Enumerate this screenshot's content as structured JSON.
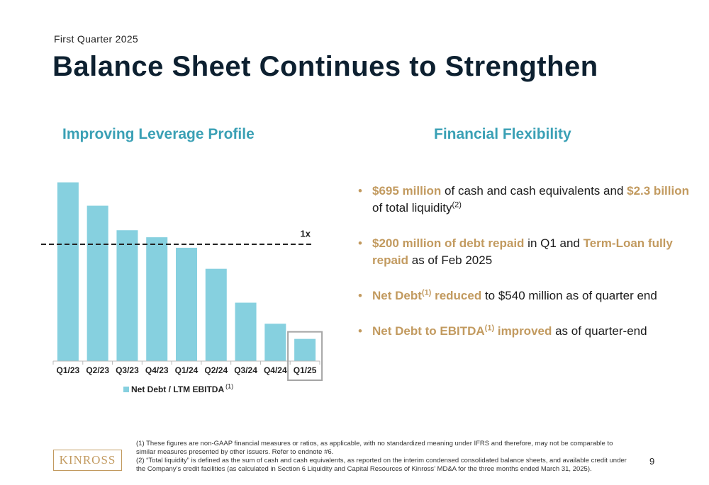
{
  "header": {
    "subtitle": "First Quarter 2025",
    "title": "Balance Sheet Continues to Strengthen"
  },
  "left_heading": "Improving Leverage Profile",
  "right_heading": "Financial Flexibility",
  "chart_data": {
    "type": "bar",
    "categories": [
      "Q1/23",
      "Q2/23",
      "Q3/23",
      "Q4/23",
      "Q1/24",
      "Q2/24",
      "Q3/24",
      "Q4/24",
      "Q1/25"
    ],
    "series": [
      {
        "name": "Net Debt / LTM EBITDA",
        "color": "#86d0df",
        "values": [
          1.53,
          1.33,
          1.12,
          1.06,
          0.97,
          0.79,
          0.5,
          0.32,
          0.19
        ]
      }
    ],
    "legend_note": "(1)",
    "ylim": [
      0,
      1.6
    ],
    "reference_line": {
      "value": 1,
      "label": "1x"
    },
    "highlight_index": 8,
    "grid": false
  },
  "bullets": [
    [
      {
        "text": "$695 million",
        "style": "highlight"
      },
      {
        "text": " of cash and cash equivalents and ",
        "style": "normal"
      },
      {
        "text": "$2.3 billion",
        "style": "highlight"
      },
      {
        "text": " of total liquidity",
        "style": "normal"
      },
      {
        "text": "(2)",
        "style": "sup"
      }
    ],
    [
      {
        "text": "$200 million of debt repaid",
        "style": "highlight"
      },
      {
        "text": " in Q1 and ",
        "style": "normal"
      },
      {
        "text": "Term-Loan fully repaid",
        "style": "highlight"
      },
      {
        "text": " as of Feb 2025",
        "style": "normal"
      }
    ],
    [
      {
        "text": "Net Debt",
        "style": "highlight"
      },
      {
        "text": "(1)",
        "style": "highlight-sup"
      },
      {
        "text": " reduced",
        "style": "highlight"
      },
      {
        "text": " to $540 million as of quarter end",
        "style": "normal"
      }
    ],
    [
      {
        "text": "Net Debt to EBITDA",
        "style": "highlight"
      },
      {
        "text": "(1)",
        "style": "highlight-sup"
      },
      {
        "text": " improved",
        "style": "highlight"
      },
      {
        "text": " as of quarter-end",
        "style": "normal"
      }
    ]
  ],
  "footnotes": [
    "(1)  These figures are non-GAAP financial measures or ratios, as applicable, with no standardized meaning under IFRS and therefore, may not be comparable to similar measures presented by other issuers. Refer to endnote #6.",
    "(2) “Total liquidity” is defined as the sum of cash and cash equivalents, as reported on the interim condensed consolidated balance sheets, and available credit under the Company’s credit facilities (as calculated in Section 6 Liquidity and Capital Resources of Kinross’ MD&A for the three months ended March 31, 2025)."
  ],
  "logo": "KINROSS",
  "page_number": "9"
}
